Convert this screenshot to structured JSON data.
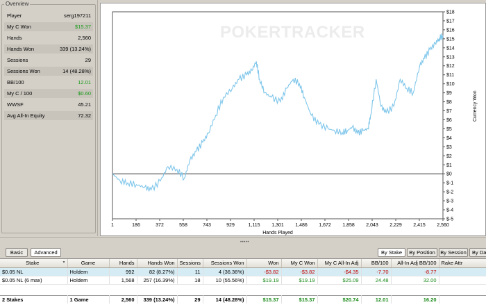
{
  "overview": {
    "legend": "Overview",
    "rows": [
      {
        "label": "Player",
        "value": "serg197211",
        "green": false
      },
      {
        "label": "My C Won",
        "value": "$15.37",
        "green": true
      },
      {
        "label": "Hands",
        "value": "2,560",
        "green": false
      },
      {
        "label": "Hands Won",
        "value": "339 (13.24%)",
        "green": false
      },
      {
        "label": "Sessions",
        "value": "29",
        "green": false
      },
      {
        "label": "Sessions Won",
        "value": "14 (48.28%)",
        "green": false
      },
      {
        "label": "BB/100",
        "value": "12.01",
        "green": true
      },
      {
        "label": "My C / 100",
        "value": "$0.60",
        "green": true
      },
      {
        "label": "WWSF",
        "value": "45.21",
        "green": false
      },
      {
        "label": "Avg All-In Equity",
        "value": "72.32",
        "green": false
      }
    ]
  },
  "graph": {
    "watermark": "POKERTRACKER",
    "xlabel": "Hands Played",
    "ylabel": "Currency Won",
    "line_color": "#7fc6ea"
  },
  "chart_data": {
    "type": "line",
    "title": "",
    "xlabel": "Hands Played",
    "ylabel": "Currency Won",
    "x_ticks": [
      "1",
      "186",
      "372",
      "558",
      "743",
      "929",
      "1,115",
      "1,301",
      "1,486",
      "1,672",
      "1,858",
      "2,043",
      "2,229",
      "2,415",
      "2,560"
    ],
    "y_ticks": [
      "$18",
      "$17",
      "$16",
      "$15",
      "$14",
      "$13",
      "$12",
      "$11",
      "$10",
      "$9",
      "$8",
      "$7",
      "$6",
      "$5",
      "$4",
      "$3",
      "$2",
      "$1",
      "$0",
      "$-1",
      "$-2",
      "$-3",
      "$-4",
      "$-5"
    ],
    "xlim": [
      1,
      2560
    ],
    "ylim": [
      -5,
      18
    ],
    "grid": false,
    "series": [
      {
        "x": [
          1,
          60,
          120,
          186,
          250,
          300,
          372,
          430,
          500,
          558,
          600,
          650,
          700,
          743,
          800,
          860,
          929,
          980,
          1040,
          1080,
          1115,
          1140,
          1180,
          1230,
          1301,
          1350,
          1400,
          1450,
          1486,
          1540,
          1600,
          1672,
          1720,
          1780,
          1820,
          1858,
          1900,
          1940,
          1980,
          2000,
          2043,
          2080,
          2120,
          2180,
          2229,
          2280,
          2330,
          2380,
          2415,
          2460,
          2500,
          2530,
          2560
        ],
        "y": [
          0,
          -0.8,
          -1.0,
          -1.2,
          -1.5,
          -1.8,
          -0.8,
          0.8,
          0.5,
          -0.5,
          1.5,
          2.5,
          3.5,
          4.5,
          6.5,
          8.5,
          9.5,
          10.5,
          11.0,
          11.5,
          12.5,
          10.5,
          9.0,
          8.5,
          8.0,
          9.5,
          10.5,
          10.0,
          8.5,
          6.5,
          5.5,
          5.0,
          4.8,
          4.6,
          4.8,
          5.2,
          4.5,
          4.8,
          5.0,
          6.5,
          10.5,
          7.5,
          6.8,
          7.5,
          10.5,
          9.5,
          9.0,
          12.0,
          12.8,
          13.8,
          14.5,
          15.0,
          15.37
        ]
      }
    ]
  },
  "tabs": {
    "basic": "Basic",
    "advanced": "Advanced",
    "by_stake": "By Stake",
    "by_position": "By Position",
    "by_session": "By Session",
    "by_date": "By Da"
  },
  "table": {
    "headers": [
      "Stake",
      "Game",
      "Hands",
      "Hands Won",
      "Sessions",
      "Sessions Won",
      "Won",
      "My C Won",
      "My C All-In Adj",
      "BB/100",
      "All-In Adj BB/100",
      "Rake Attr"
    ],
    "rows": [
      [
        "$0.05 NL",
        "Holdem",
        "992",
        "82 (8.27%)",
        "11",
        "4 (36.36%)",
        "-$3.82",
        "-$3.82",
        "-$4.35",
        "-7.70",
        "-8.77",
        ""
      ],
      [
        "$0.05 NL (6 max)",
        "Holdem",
        "1,568",
        "257 (16.39%)",
        "18",
        "10 (55.56%)",
        "$19.19",
        "$19.19",
        "$25.09",
        "24.48",
        "32.00",
        ""
      ]
    ],
    "total": [
      "2 Stakes",
      "1 Game",
      "2,560",
      "339 (13.24%)",
      "29",
      "14 (48.28%)",
      "$15.37",
      "$15.37",
      "$20.74",
      "12.01",
      "16.20",
      ""
    ]
  }
}
